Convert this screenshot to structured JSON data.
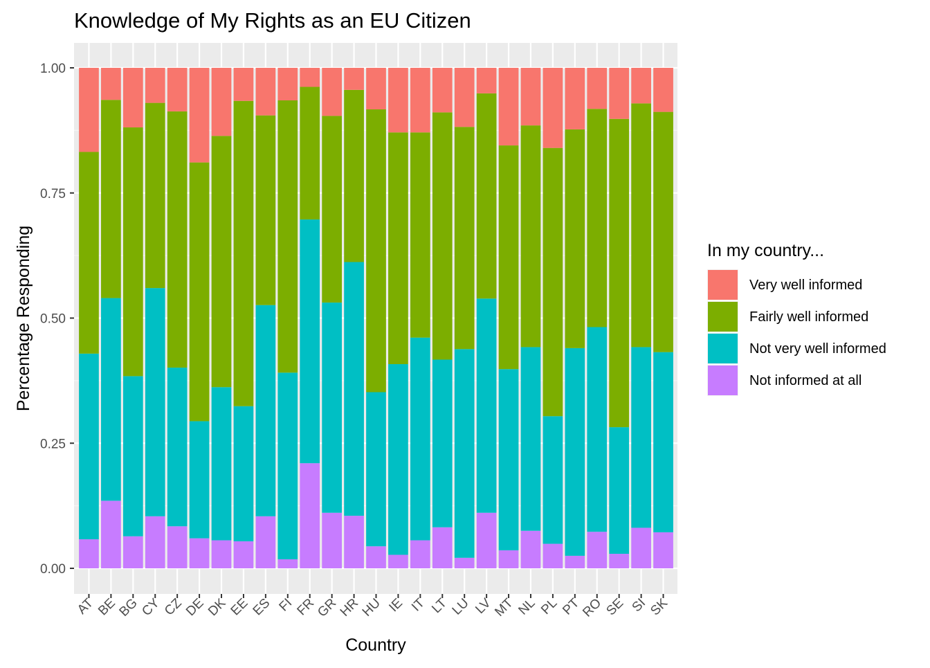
{
  "chart_data": {
    "type": "bar",
    "stacked": true,
    "title": "Knowledge of My Rights as an EU Citizen",
    "xlabel": "Country",
    "ylabel": "Percentage Responding",
    "ylim": [
      0,
      1
    ],
    "yticks": [
      "0.00",
      "0.25",
      "0.50",
      "0.75",
      "1.00"
    ],
    "ytick_values": [
      0,
      0.25,
      0.5,
      0.75,
      1.0
    ],
    "grid": true,
    "legend": {
      "title": "In my country...",
      "position": "right"
    },
    "categories": [
      "AT",
      "BE",
      "BG",
      "CY",
      "CZ",
      "DE",
      "DK",
      "EE",
      "ES",
      "FI",
      "FR",
      "GR",
      "HR",
      "HU",
      "IE",
      "IT",
      "LT",
      "LU",
      "LV",
      "MT",
      "NL",
      "PL",
      "PT",
      "RO",
      "SE",
      "SI",
      "SK"
    ],
    "series": [
      {
        "name": "Not informed at all",
        "color": "#C77CFF",
        "values": [
          0.058,
          0.135,
          0.064,
          0.104,
          0.084,
          0.06,
          0.056,
          0.054,
          0.104,
          0.018,
          0.21,
          0.111,
          0.105,
          0.044,
          0.027,
          0.056,
          0.082,
          0.021,
          0.111,
          0.036,
          0.075,
          0.049,
          0.025,
          0.073,
          0.029,
          0.081,
          0.072
        ]
      },
      {
        "name": "Not very well informed",
        "color": "#00BFC4",
        "values": [
          0.371,
          0.405,
          0.32,
          0.456,
          0.317,
          0.234,
          0.306,
          0.27,
          0.422,
          0.373,
          0.487,
          0.42,
          0.507,
          0.308,
          0.381,
          0.405,
          0.335,
          0.417,
          0.428,
          0.362,
          0.367,
          0.255,
          0.415,
          0.409,
          0.253,
          0.361,
          0.36
        ]
      },
      {
        "name": "Fairly well informed",
        "color": "#7CAE00",
        "values": [
          0.403,
          0.396,
          0.497,
          0.37,
          0.512,
          0.517,
          0.502,
          0.61,
          0.379,
          0.544,
          0.265,
          0.373,
          0.344,
          0.565,
          0.463,
          0.41,
          0.494,
          0.444,
          0.41,
          0.447,
          0.443,
          0.536,
          0.437,
          0.436,
          0.616,
          0.487,
          0.48
        ]
      },
      {
        "name": "Very well informed",
        "color": "#F8766D",
        "values": [
          0.168,
          0.064,
          0.119,
          0.07,
          0.087,
          0.189,
          0.136,
          0.066,
          0.095,
          0.065,
          0.038,
          0.096,
          0.044,
          0.083,
          0.129,
          0.129,
          0.089,
          0.118,
          0.051,
          0.155,
          0.115,
          0.16,
          0.123,
          0.082,
          0.102,
          0.071,
          0.088
        ]
      }
    ]
  }
}
